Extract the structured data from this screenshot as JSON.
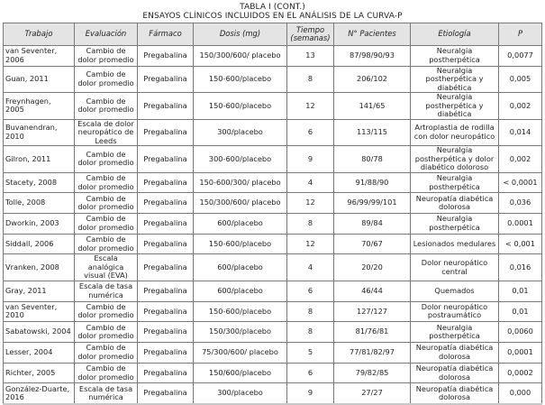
{
  "title": "TABLA I (CONT.)",
  "subtitle": "ENSAYOS CLÍNICOS INCLUIDOS EN EL ANÁLISIS DE LA CURVA-P",
  "columns": [
    "Trabajo",
    "Evaluación",
    "Fármaco",
    "Dosis (mg)",
    "Tiempo (semanas)",
    "N° Pacientes",
    "Etiología",
    "P"
  ],
  "rows": [
    [
      "van Seventer, 2006",
      "Cambio de dolor promedio",
      "Pregabalina",
      "150/300/600/ placebo",
      "13",
      "87/98/90/93",
      "Neuralgia postherpética",
      "0,0077"
    ],
    [
      "Guan, 2011",
      "Cambio de dolor promedio",
      "Pregabalina",
      "150-600/placebo",
      "8",
      "206/102",
      "Neuralgia postherpética y diabética",
      "0,005"
    ],
    [
      "Freynhagen, 2005",
      "Cambio de dolor promedio",
      "Pregabalina",
      "150-600/placebo",
      "12",
      "141/65",
      "Neuralgia postherpética y diabética",
      "0,002"
    ],
    [
      "Buvanendran, 2010",
      "Escala de dolor neuropático de Leeds",
      "Pregabalina",
      "300/placebo",
      "6",
      "113/115",
      "Artroplastia de rodilla con dolor neuropático",
      "0,014"
    ],
    [
      "Gilron, 2011",
      "Cambio de dolor promedio",
      "Pregabalina",
      "300-600/placebo",
      "9",
      "80/78",
      "Neuralgia postherpética y dolor diabético doloroso",
      "0,002"
    ],
    [
      "Stacety, 2008",
      "Cambio de dolor promedio",
      "Pregabalina",
      "150-600/300/ placebo",
      "4",
      "91/88/90",
      "Neuralgia postherpética",
      "< 0,0001"
    ],
    [
      "Tolle, 2008",
      "Cambio de dolor promedio",
      "Pregabalina",
      "150/300/600/ placebo",
      "12",
      "96/99/99/101",
      "Neuropatía diabética dolorosa",
      "0,036"
    ],
    [
      "Dworkin, 2003",
      "Cambio de dolor promedio",
      "Pregabalina",
      "600/placebo",
      "8",
      "89/84",
      "Neuralgia postherpética",
      "0.0001"
    ],
    [
      "Siddall, 2006",
      "Cambio de dolor promedio",
      "Pregabalina",
      "150-600/placebo",
      "12",
      "70/67",
      "Lesionados medulares",
      "< 0,001"
    ],
    [
      "Vranken, 2008",
      "Escala analógica visual (EVA)",
      "Pregabalina",
      "600/placebo",
      "4",
      "20/20",
      "Dolor neuropático central",
      "0,016"
    ],
    [
      "Gray, 2011",
      "Escala de tasa numérica",
      "Pregabalina",
      "600/placebo",
      "6",
      "46/44",
      "Quemados",
      "0,01"
    ],
    [
      "van Seventer, 2010",
      "Cambio de dolor promedio",
      "Pregabalina",
      "150-600/placebo",
      "8",
      "127/127",
      "Dolor neuropático postraumático",
      "0,01"
    ],
    [
      "Sabatowski, 2004",
      "Cambio de dolor promedio",
      "Pregabalina",
      "150/300/placebo",
      "8",
      "81/76/81",
      "Neuralgia postherpética",
      "0,0060"
    ],
    [
      "Lesser, 2004",
      "Cambio de dolor promedio",
      "Pregabalina",
      "75/300/600/ placebo",
      "5",
      "77/81/82/97",
      "Neuropatía diabética dolorosa",
      "0,0001"
    ],
    [
      "Richter, 2005",
      "Cambio de dolor promedio",
      "Pregabalina",
      "150/600/placebo",
      "6",
      "79/82/85",
      "Neuropatía diabética dolorosa",
      "0,0002"
    ],
    [
      "González-Duarte, 2016",
      "Escala de tasa numérica",
      "Pregabalina",
      "300/placebo",
      "9",
      "27/27",
      "Neuropatía diabética dolorosa",
      "0,000"
    ]
  ]
}
